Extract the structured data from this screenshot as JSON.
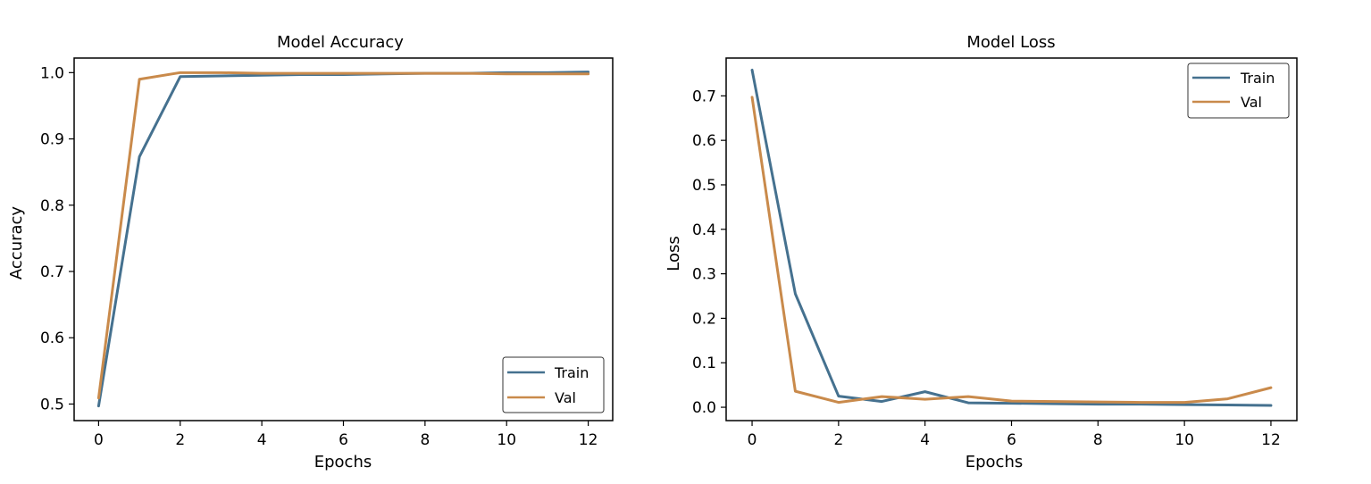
{
  "colors": {
    "train": "#45718f",
    "val": "#c98a4b"
  },
  "chart_data": [
    {
      "type": "line",
      "title": "Model Accuracy",
      "xlabel": "Epochs",
      "ylabel": "Accuracy",
      "xlim": [
        -0.6,
        12.6
      ],
      "ylim": [
        0.475,
        1.022
      ],
      "xticks": [
        0,
        2,
        4,
        6,
        8,
        10,
        12
      ],
      "yticks": [
        0.5,
        0.6,
        0.7,
        0.8,
        0.9,
        1.0
      ],
      "ytick_labels": [
        "0.5",
        "0.6",
        "0.7",
        "0.8",
        "0.9",
        "1.0"
      ],
      "legend": "bottom-right",
      "grid": false,
      "x": [
        0,
        1,
        2,
        3,
        4,
        5,
        6,
        7,
        8,
        9,
        10,
        11,
        12
      ],
      "series": [
        {
          "name": "Train",
          "values": [
            0.497,
            0.873,
            0.994,
            0.995,
            0.996,
            0.997,
            0.997,
            0.998,
            0.999,
            0.999,
            1.0,
            1.0,
            1.001
          ]
        },
        {
          "name": "Val",
          "values": [
            0.509,
            0.99,
            1.0,
            1.0,
            0.999,
            0.999,
            0.999,
            0.999,
            0.999,
            0.999,
            0.998,
            0.998,
            0.998
          ]
        }
      ]
    },
    {
      "type": "line",
      "title": "Model Loss",
      "xlabel": "Epochs",
      "ylabel": "Loss",
      "xlim": [
        -0.6,
        12.6
      ],
      "ylim": [
        -0.03,
        0.785
      ],
      "xticks": [
        0,
        2,
        4,
        6,
        8,
        10,
        12
      ],
      "yticks": [
        0.0,
        0.1,
        0.2,
        0.3,
        0.4,
        0.5,
        0.6,
        0.7
      ],
      "ytick_labels": [
        "0.0",
        "0.1",
        "0.2",
        "0.3",
        "0.4",
        "0.5",
        "0.6",
        "0.7"
      ],
      "legend": "top-right",
      "grid": false,
      "x": [
        0,
        1,
        2,
        3,
        4,
        5,
        6,
        7,
        8,
        9,
        10,
        11,
        12
      ],
      "series": [
        {
          "name": "Train",
          "values": [
            0.758,
            0.255,
            0.025,
            0.013,
            0.035,
            0.01,
            0.009,
            0.008,
            0.007,
            0.007,
            0.006,
            0.005,
            0.004
          ]
        },
        {
          "name": "Val",
          "values": [
            0.697,
            0.036,
            0.011,
            0.024,
            0.018,
            0.024,
            0.014,
            0.013,
            0.012,
            0.011,
            0.011,
            0.019,
            0.044
          ]
        }
      ]
    }
  ]
}
